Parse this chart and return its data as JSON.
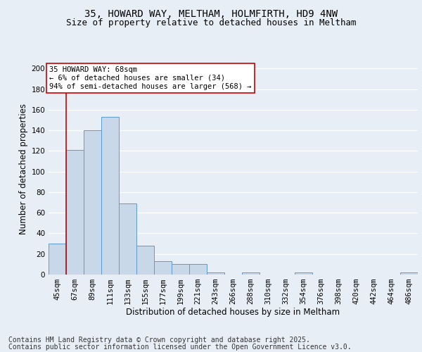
{
  "title_line1": "35, HOWARD WAY, MELTHAM, HOLMFIRTH, HD9 4NW",
  "title_line2": "Size of property relative to detached houses in Meltham",
  "xlabel": "Distribution of detached houses by size in Meltham",
  "ylabel": "Number of detached properties",
  "footer_line1": "Contains HM Land Registry data © Crown copyright and database right 2025.",
  "footer_line2": "Contains public sector information licensed under the Open Government Licence v3.0.",
  "categories": [
    "45sqm",
    "67sqm",
    "89sqm",
    "111sqm",
    "133sqm",
    "155sqm",
    "177sqm",
    "199sqm",
    "221sqm",
    "243sqm",
    "266sqm",
    "288sqm",
    "310sqm",
    "332sqm",
    "354sqm",
    "376sqm",
    "398sqm",
    "420sqm",
    "442sqm",
    "464sqm",
    "486sqm"
  ],
  "values": [
    30,
    121,
    140,
    153,
    69,
    28,
    13,
    10,
    10,
    2,
    0,
    2,
    0,
    0,
    2,
    0,
    0,
    0,
    0,
    0,
    2
  ],
  "bar_color": "#c8d8e8",
  "bar_edge_color": "#5b9bd5",
  "annotation_box_text": "35 HOWARD WAY: 68sqm\n← 6% of detached houses are smaller (34)\n94% of semi-detached houses are larger (568) →",
  "ylim": [
    0,
    205
  ],
  "yticks": [
    0,
    20,
    40,
    60,
    80,
    100,
    120,
    140,
    160,
    180,
    200
  ],
  "background_color": "#e8eef5",
  "plot_bg_color": "#e8eef5",
  "grid_color": "#ffffff",
  "vline_x_index": 1,
  "title_fontsize": 10,
  "subtitle_fontsize": 9,
  "axis_label_fontsize": 8.5,
  "tick_fontsize": 7.5,
  "footer_fontsize": 7,
  "ann_fontsize": 7.5
}
